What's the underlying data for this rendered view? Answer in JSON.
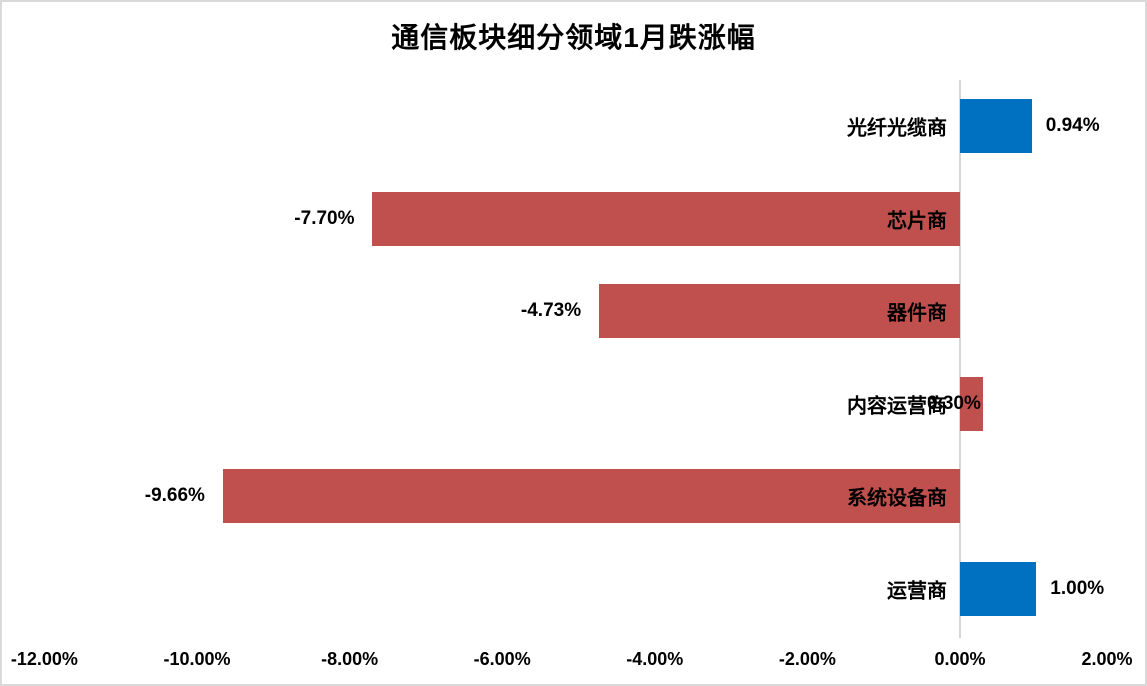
{
  "chart_data": {
    "type": "bar",
    "orientation": "horizontal",
    "title": "通信板块细分领域1月跌涨幅",
    "categories": [
      "光纤光缆商",
      "芯片商",
      "器件商",
      "内容运营商",
      "系统设备商",
      "运营商"
    ],
    "values": [
      0.94,
      -7.7,
      -4.73,
      0.3,
      -9.66,
      1.0
    ],
    "value_labels": [
      "0.94%",
      "-7.70%",
      "-4.73%",
      "0.30%",
      "-9.66%",
      "1.00%"
    ],
    "bar_colors": [
      "#0070C0",
      "#C0504D",
      "#C0504D",
      "#C0504D",
      "#C0504D",
      "#0070C0"
    ],
    "value_label_positions": [
      "outside_end",
      "outside_end",
      "outside_end",
      "at_bar_end_overlapping_category",
      "outside_end",
      "outside_end"
    ],
    "xlim": [
      -12,
      2
    ],
    "x_tick_step": 2,
    "x_tick_labels": [
      "-12.00%",
      "-10.00%",
      "-8.00%",
      "-6.00%",
      "-4.00%",
      "-2.00%",
      "0.00%",
      "2.00%"
    ],
    "grid": false,
    "legend": false,
    "colors": {
      "positive_bar": "#0070C0",
      "negative_bar": "#C0504D",
      "zero_axis_line": "#D6D6D6",
      "chart_border": "#D9D9D9",
      "text": "#000000",
      "background": "#FFFFFF"
    }
  }
}
